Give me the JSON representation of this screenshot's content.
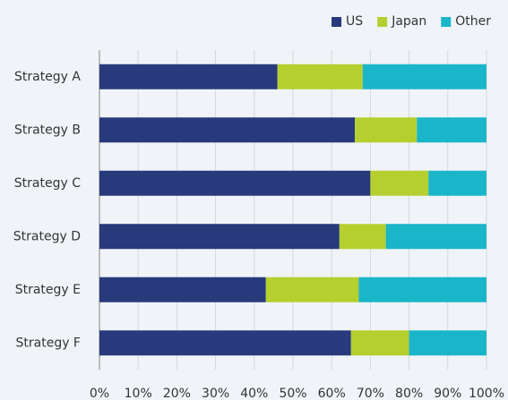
{
  "chart_data": {
    "type": "stacked-barh",
    "categories": [
      "Strategy A",
      "Strategy B",
      "Strategy C",
      "Strategy D",
      "Strategy E",
      "Strategy F"
    ],
    "series": [
      {
        "name": "US",
        "color": "#283a7c",
        "values": [
          46,
          66,
          70,
          62,
          43,
          65
        ]
      },
      {
        "name": "Japan",
        "color": "#b5cf2f",
        "values": [
          22,
          16,
          15,
          12,
          24,
          15
        ]
      },
      {
        "name": "Other",
        "color": "#1bb5c9",
        "values": [
          32,
          18,
          15,
          26,
          33,
          20
        ]
      }
    ],
    "xlim": [
      0,
      100
    ],
    "xticks": [
      {
        "value": 0,
        "label": "0%"
      },
      {
        "value": 10,
        "label": "10%"
      },
      {
        "value": 20,
        "label": "20%"
      },
      {
        "value": 30,
        "label": "30%"
      },
      {
        "value": 40,
        "label": "40%"
      },
      {
        "value": 50,
        "label": "50%"
      },
      {
        "value": 60,
        "label": "60%"
      },
      {
        "value": 70,
        "label": "70%"
      },
      {
        "value": 80,
        "label": "80%"
      },
      {
        "value": 90,
        "label": "90%"
      },
      {
        "value": 100,
        "label": "100%"
      }
    ],
    "grid": true,
    "legend": "top-right"
  }
}
